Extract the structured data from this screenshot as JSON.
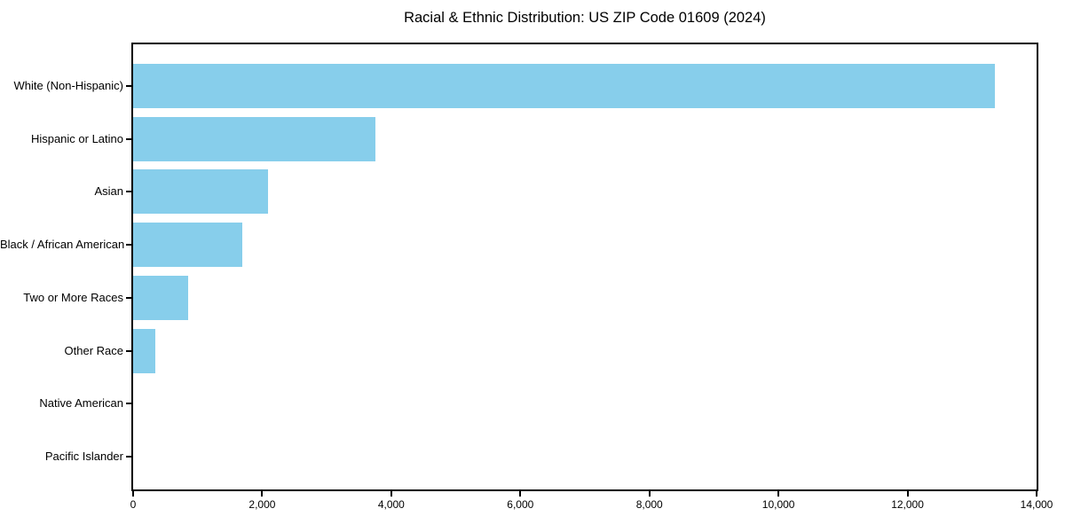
{
  "chart_data": {
    "type": "bar",
    "orientation": "horizontal",
    "title": "Racial & Ethnic Distribution: US ZIP Code 01609 (2024)",
    "categories": [
      "White (Non-Hispanic)",
      "Hispanic or Latino",
      "Asian",
      "Black / African American",
      "Two or More Races",
      "Other Race",
      "Native American",
      "Pacific Islander"
    ],
    "values": [
      13350,
      3760,
      2090,
      1690,
      850,
      340,
      0,
      0
    ],
    "xlabel": "",
    "ylabel": "",
    "xlim": [
      0,
      14000
    ],
    "x_ticks": [
      0,
      2000,
      4000,
      6000,
      8000,
      10000,
      12000,
      14000
    ],
    "x_tick_labels": [
      "0",
      "2,000",
      "4,000",
      "6,000",
      "8,000",
      "10,000",
      "12,000",
      "14,000"
    ],
    "bar_color": "#87CEEB",
    "grid": false,
    "legend": null,
    "background_color": "#FFFFFF",
    "text_color": "#000000"
  }
}
